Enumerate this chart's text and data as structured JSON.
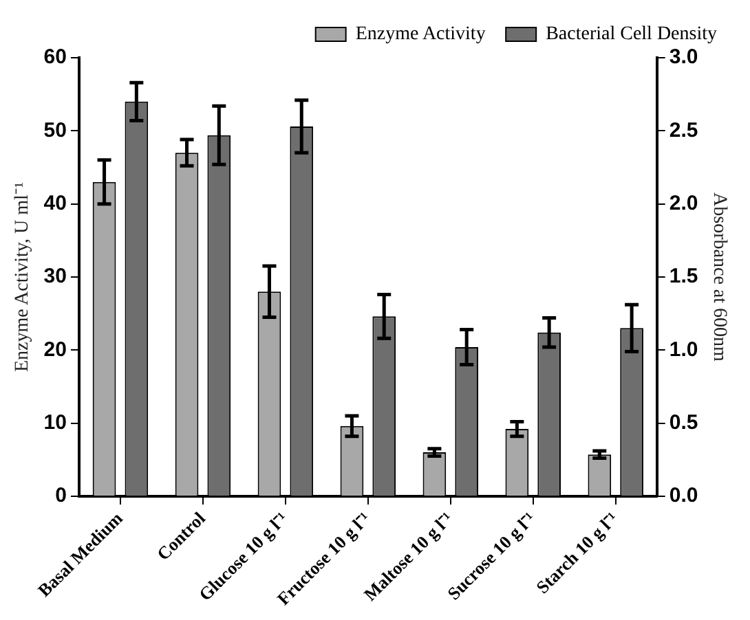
{
  "chart_data": {
    "type": "bar",
    "categories": [
      "Basal Medium",
      "Control",
      "Glucose 10 g l⁻¹",
      "Fructose 10 g l⁻¹",
      "Maltose 10 g l⁻¹",
      "Sucrose 10 g l⁻¹",
      "Starch 10 g l⁻¹"
    ],
    "ylabel": "Enzyme Activity, U ml⁻¹",
    "y2label": "Absorbance at 600nm",
    "ylim": [
      0,
      60
    ],
    "yticks": [
      0,
      10,
      20,
      30,
      40,
      50,
      60
    ],
    "y2lim": [
      0,
      3
    ],
    "y2ticks": [
      {
        "value": 0,
        "label": "0.0"
      },
      {
        "value": 0.5,
        "label": "0.5"
      },
      {
        "value": 1,
        "label": "1.0"
      },
      {
        "value": 1.5,
        "label": "1.5"
      },
      {
        "value": 2,
        "label": "2.0"
      },
      {
        "value": 2.5,
        "label": "2.5"
      },
      {
        "value": 3,
        "label": "3.0"
      }
    ],
    "series": [
      {
        "name": "Enzyme Activity",
        "color": "#a8a8a8",
        "values": [
          43,
          47,
          28,
          9.6,
          6,
          9.2,
          5.7
        ],
        "errors": [
          3,
          1.8,
          3.5,
          1.4,
          0.5,
          1,
          0.5
        ]
      },
      {
        "name": "Bacterial Cell Density",
        "color": "#6e6e6e",
        "axis": "y2",
        "values": [
          2.7,
          2.47,
          2.53,
          1.23,
          1.02,
          1.12,
          1.15
        ],
        "errors": [
          0.13,
          0.2,
          0.18,
          0.15,
          0.12,
          0.1,
          0.16
        ]
      }
    ],
    "grid": false,
    "legend": "top right"
  }
}
